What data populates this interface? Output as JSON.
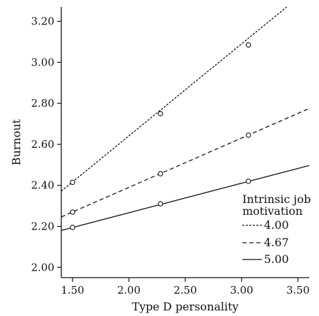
{
  "chart_data": {
    "type": "line",
    "title": "",
    "xlabel": "Type D personality",
    "ylabel": "Burnout",
    "xlim": [
      1.4,
      3.6
    ],
    "ylim": [
      1.95,
      3.27
    ],
    "x_ticks": [
      1.5,
      2.0,
      2.5,
      3.0,
      3.5
    ],
    "x_tick_labels": [
      "1.50",
      "2.00",
      "2.50",
      "3.00",
      "3.50"
    ],
    "y_ticks": [
      2.0,
      2.2,
      2.4,
      2.6,
      2.8,
      3.0,
      3.2
    ],
    "y_tick_labels": [
      "2.00",
      "2.20",
      "2.40",
      "2.60",
      "2.80",
      "3.00",
      "3.20"
    ],
    "grid": false,
    "legend": {
      "title": "Intrinsic job motivation",
      "title_lines": [
        "Intrinsic job",
        "motivation"
      ],
      "position": "bottom-right"
    },
    "series": [
      {
        "name": "4.00",
        "line_style": "dotted",
        "x": [
          1.5,
          2.28,
          3.06
        ],
        "y": [
          2.415,
          2.75,
          3.085
        ],
        "line_x": [
          1.4,
          3.4
        ],
        "line_y": [
          2.372,
          3.27
        ]
      },
      {
        "name": "4.67",
        "line_style": "dashed",
        "x": [
          1.5,
          2.28,
          3.06
        ],
        "y": [
          2.27,
          2.457,
          2.645
        ],
        "line_x": [
          1.4,
          3.6
        ],
        "line_y": [
          2.246,
          2.775
        ]
      },
      {
        "name": "5.00",
        "line_style": "solid",
        "x": [
          1.5,
          2.28,
          3.06
        ],
        "y": [
          2.195,
          2.31,
          2.42
        ],
        "line_x": [
          1.4,
          3.6
        ],
        "line_y": [
          2.18,
          2.497
        ]
      }
    ],
    "colors": {
      "line": "#111111",
      "background": "#ffffff"
    }
  }
}
